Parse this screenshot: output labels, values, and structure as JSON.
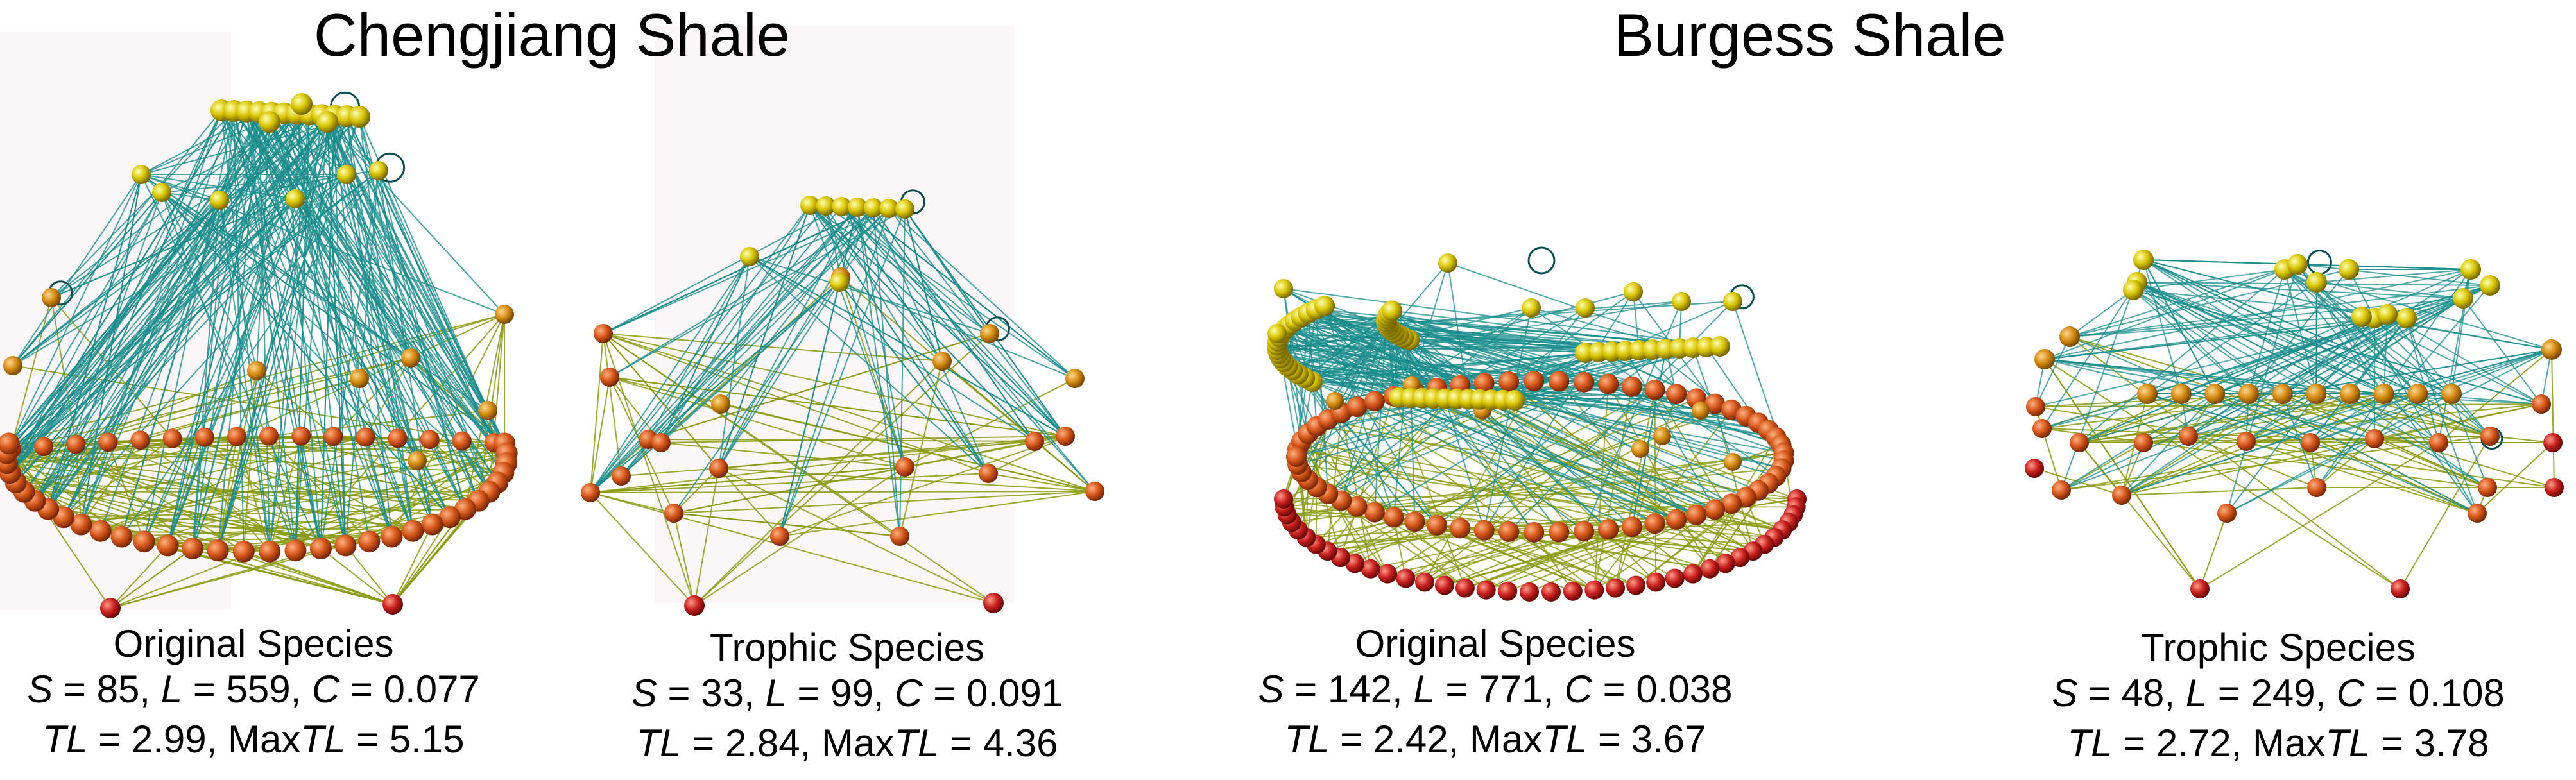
{
  "headings": {
    "chengjiang": "Chengjiang Shale",
    "burgess": "Burgess Shale"
  },
  "panels": [
    {
      "id": "cj-original",
      "caption": "Original Species",
      "S": "85",
      "L": "559",
      "C": "0.077",
      "TL": "2.99",
      "MaxTL": "5.15"
    },
    {
      "id": "cj-trophic",
      "caption": "Trophic Species",
      "S": "33",
      "L": "99",
      "C": "0.091",
      "TL": "2.84",
      "MaxTL": "4.36"
    },
    {
      "id": "bg-original",
      "caption": "Original Species",
      "S": "142",
      "L": "771",
      "C": "0.038",
      "TL": "2.42",
      "MaxTL": "3.67"
    },
    {
      "id": "bg-trophic",
      "caption": "Trophic Species",
      "S": "48",
      "L": "249",
      "C": "0.108",
      "TL": "2.72",
      "MaxTL": "3.78"
    }
  ],
  "symbols": {
    "S": "S",
    "L": "L",
    "C": "C",
    "TL": "TL",
    "Max": "Max"
  },
  "colors": {
    "basal_node": "#c8201e",
    "low_node": "#d4561a",
    "mid_node": "#d48a10",
    "top_node": "#d8c400",
    "low_link": "#8a9a10",
    "high_link": "#1a8c8c"
  }
}
